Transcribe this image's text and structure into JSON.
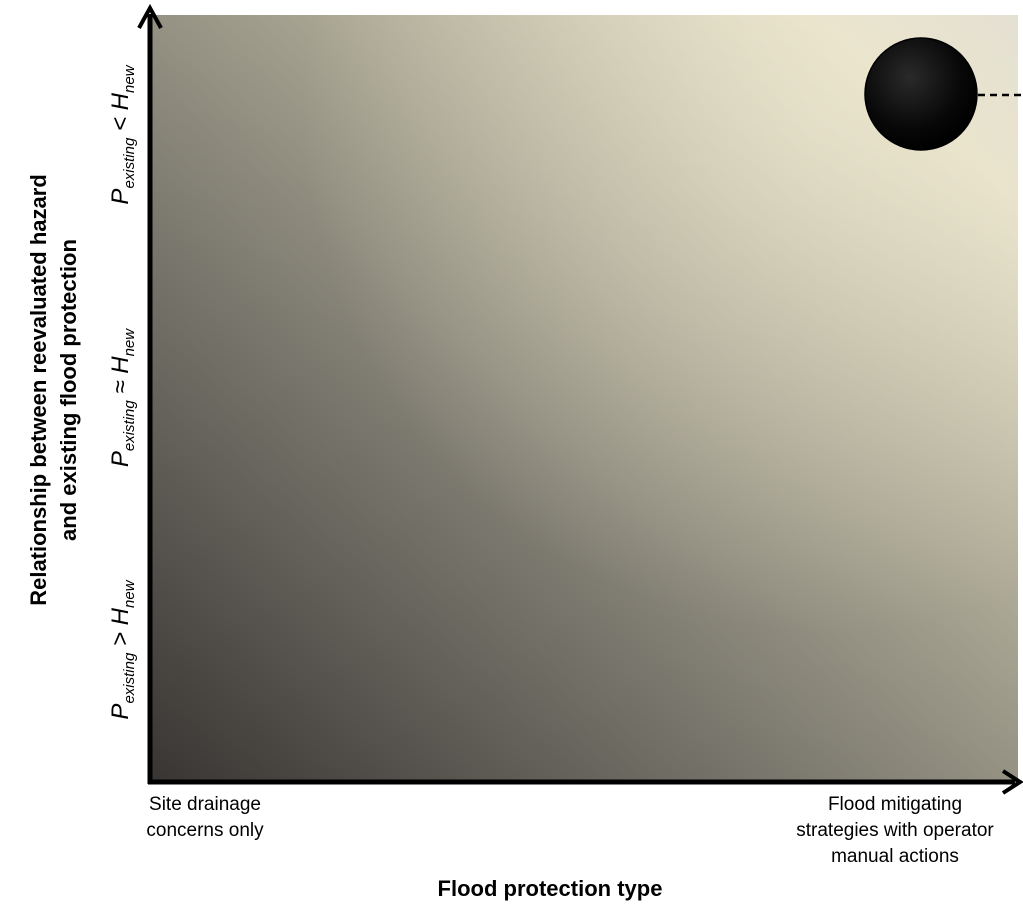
{
  "y_axis": {
    "title_line1": "Relationship between reevaluated hazard",
    "title_line2": "and existing flood protection",
    "ticks": [
      {
        "p": "P",
        "sub_p": "existing",
        "op": ">",
        "h": "H",
        "sub_h": "new"
      },
      {
        "p": "P",
        "sub_p": "existing",
        "op": "≈",
        "h": "H",
        "sub_h": "new"
      },
      {
        "p": "P",
        "sub_p": "existing",
        "op": "<",
        "h": "H",
        "sub_h": "new"
      }
    ]
  },
  "x_axis": {
    "title": "Flood protection type",
    "tick_left_line1": "Site drainage",
    "tick_left_line2": "concerns only",
    "tick_right_line1": "Flood mitigating",
    "tick_right_line2": "strategies with operator",
    "tick_right_line3": "manual actions"
  },
  "colors": {
    "axis": "#000000",
    "gradient_dark": "#383533",
    "gradient_light": "#e6e0c9",
    "marker": "#0a0a0a"
  },
  "marker": {
    "x_category": "Flood mitigating strategies with operator manual actions",
    "y_category": "P existing < H new",
    "connector": "dashed"
  }
}
